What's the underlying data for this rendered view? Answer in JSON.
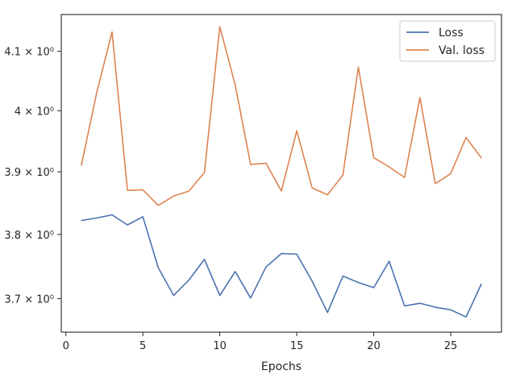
{
  "chart_data": {
    "type": "line",
    "xlabel": "Epochs",
    "ylabel": "",
    "xlim": [
      -0.3,
      28.3
    ],
    "ylim": [
      3.649,
      4.163
    ],
    "yscale": "log",
    "grid": false,
    "legend_position": "top-right",
    "x_ticks": [
      {
        "value": 0,
        "label": "0"
      },
      {
        "value": 5,
        "label": "5"
      },
      {
        "value": 10,
        "label": "10"
      },
      {
        "value": 15,
        "label": "15"
      },
      {
        "value": 20,
        "label": "20"
      },
      {
        "value": 25,
        "label": "25"
      }
    ],
    "y_ticks": [
      {
        "value": 3.7,
        "label": "3.7 × 10⁰"
      },
      {
        "value": 3.8,
        "label": "3.8 × 10⁰"
      },
      {
        "value": 3.9,
        "label": "3.9 × 10⁰"
      },
      {
        "value": 4.0,
        "label": "4 × 10⁰"
      },
      {
        "value": 4.1,
        "label": "4.1 × 10⁰"
      }
    ],
    "x": [
      1,
      2,
      3,
      4,
      5,
      6,
      7,
      8,
      9,
      10,
      11,
      12,
      13,
      14,
      15,
      16,
      17,
      18,
      19,
      20,
      21,
      22,
      23,
      24,
      25,
      26,
      27
    ],
    "series": [
      {
        "name": "Loss",
        "color": "#4c72b0",
        "values": [
          3.822,
          3.826,
          3.831,
          3.815,
          3.828,
          3.748,
          3.705,
          3.729,
          3.761,
          3.705,
          3.742,
          3.701,
          3.749,
          3.77,
          3.769,
          3.727,
          3.679,
          3.735,
          3.725,
          3.717,
          3.758,
          3.689,
          3.693,
          3.687,
          3.683,
          3.672,
          3.723
        ]
      },
      {
        "name": "Val. loss",
        "color": "#dd8452",
        "values": [
          3.91,
          4.03,
          4.133,
          3.87,
          3.871,
          3.846,
          3.861,
          3.869,
          3.899,
          4.142,
          4.043,
          3.912,
          3.914,
          3.869,
          3.967,
          3.874,
          3.863,
          3.895,
          4.073,
          3.923,
          3.908,
          3.891,
          4.022,
          3.881,
          3.897,
          3.956,
          3.922
        ]
      }
    ]
  }
}
